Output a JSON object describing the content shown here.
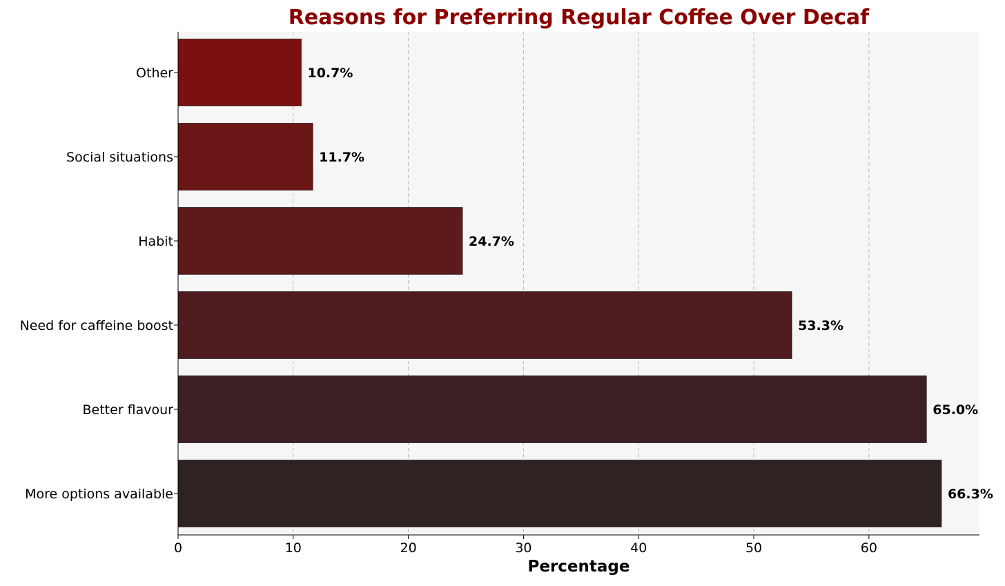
{
  "chart_data": {
    "type": "bar",
    "orientation": "horizontal",
    "title": "Reasons for Preferring Regular Coffee Over Decaf",
    "xlabel": "Percentage",
    "ylabel": "",
    "xlim": [
      0,
      69.6
    ],
    "xticks": [
      0,
      10,
      20,
      30,
      40,
      50,
      60
    ],
    "grid": "vertical dashed",
    "legend": "none",
    "categories": [
      "More options available",
      "Better flavour",
      "Need for caffeine boost",
      "Habit",
      "Social situations",
      "Other"
    ],
    "values": [
      66.3,
      65.0,
      53.3,
      24.7,
      11.7,
      10.7
    ],
    "value_labels": [
      "66.3%",
      "65.0%",
      "53.3%",
      "24.7%",
      "11.7%",
      "10.7%"
    ],
    "colors": [
      "#2e2322",
      "#3d2023",
      "#4e1c1e",
      "#5c1a1b",
      "#6a1616",
      "#7a1010"
    ],
    "title_color": "#8b0000",
    "plot_background": "#f7f6f6"
  }
}
